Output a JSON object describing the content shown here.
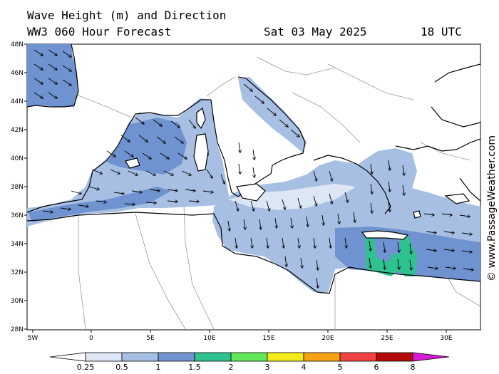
{
  "title": {
    "line1": "Wave Height (m) and Direction",
    "model": "WW3 060 Hour Forecast",
    "date": "Sat 03 May 2025",
    "time": "18 UTC"
  },
  "watermark": "© www.PassageWeather.com",
  "axes": {
    "lat_labels": [
      "48N",
      "46N",
      "44N",
      "42N",
      "40N",
      "38N",
      "36N",
      "34N",
      "32N",
      "30N",
      "28N"
    ],
    "lon_labels": [
      "5W",
      "0",
      "5E",
      "10E",
      "15E",
      "20E",
      "25E",
      "30E"
    ]
  },
  "legend": {
    "ticks": [
      "0.25",
      "0.5",
      "1",
      "1.5",
      "2",
      "3",
      "4",
      "5",
      "6",
      "8"
    ],
    "colors": [
      "#ffffff",
      "#dde6f4",
      "#a7bfe3",
      "#6f93d0",
      "#2ec290",
      "#62e85a",
      "#f5ea1c",
      "#f5a217",
      "#f14442",
      "#b40a0a",
      "#d61ad6"
    ]
  },
  "colors": {
    "sea_low": "#dde6f4",
    "sea_mid": "#a7bfe3",
    "sea_high": "#6f93d0",
    "sea_peak": "#2ec290",
    "coast": "#000000",
    "border": "#9a9a9a"
  },
  "wave_field": {
    "quantity": "significant wave height",
    "units": "m",
    "max_band": "1.5-2"
  }
}
